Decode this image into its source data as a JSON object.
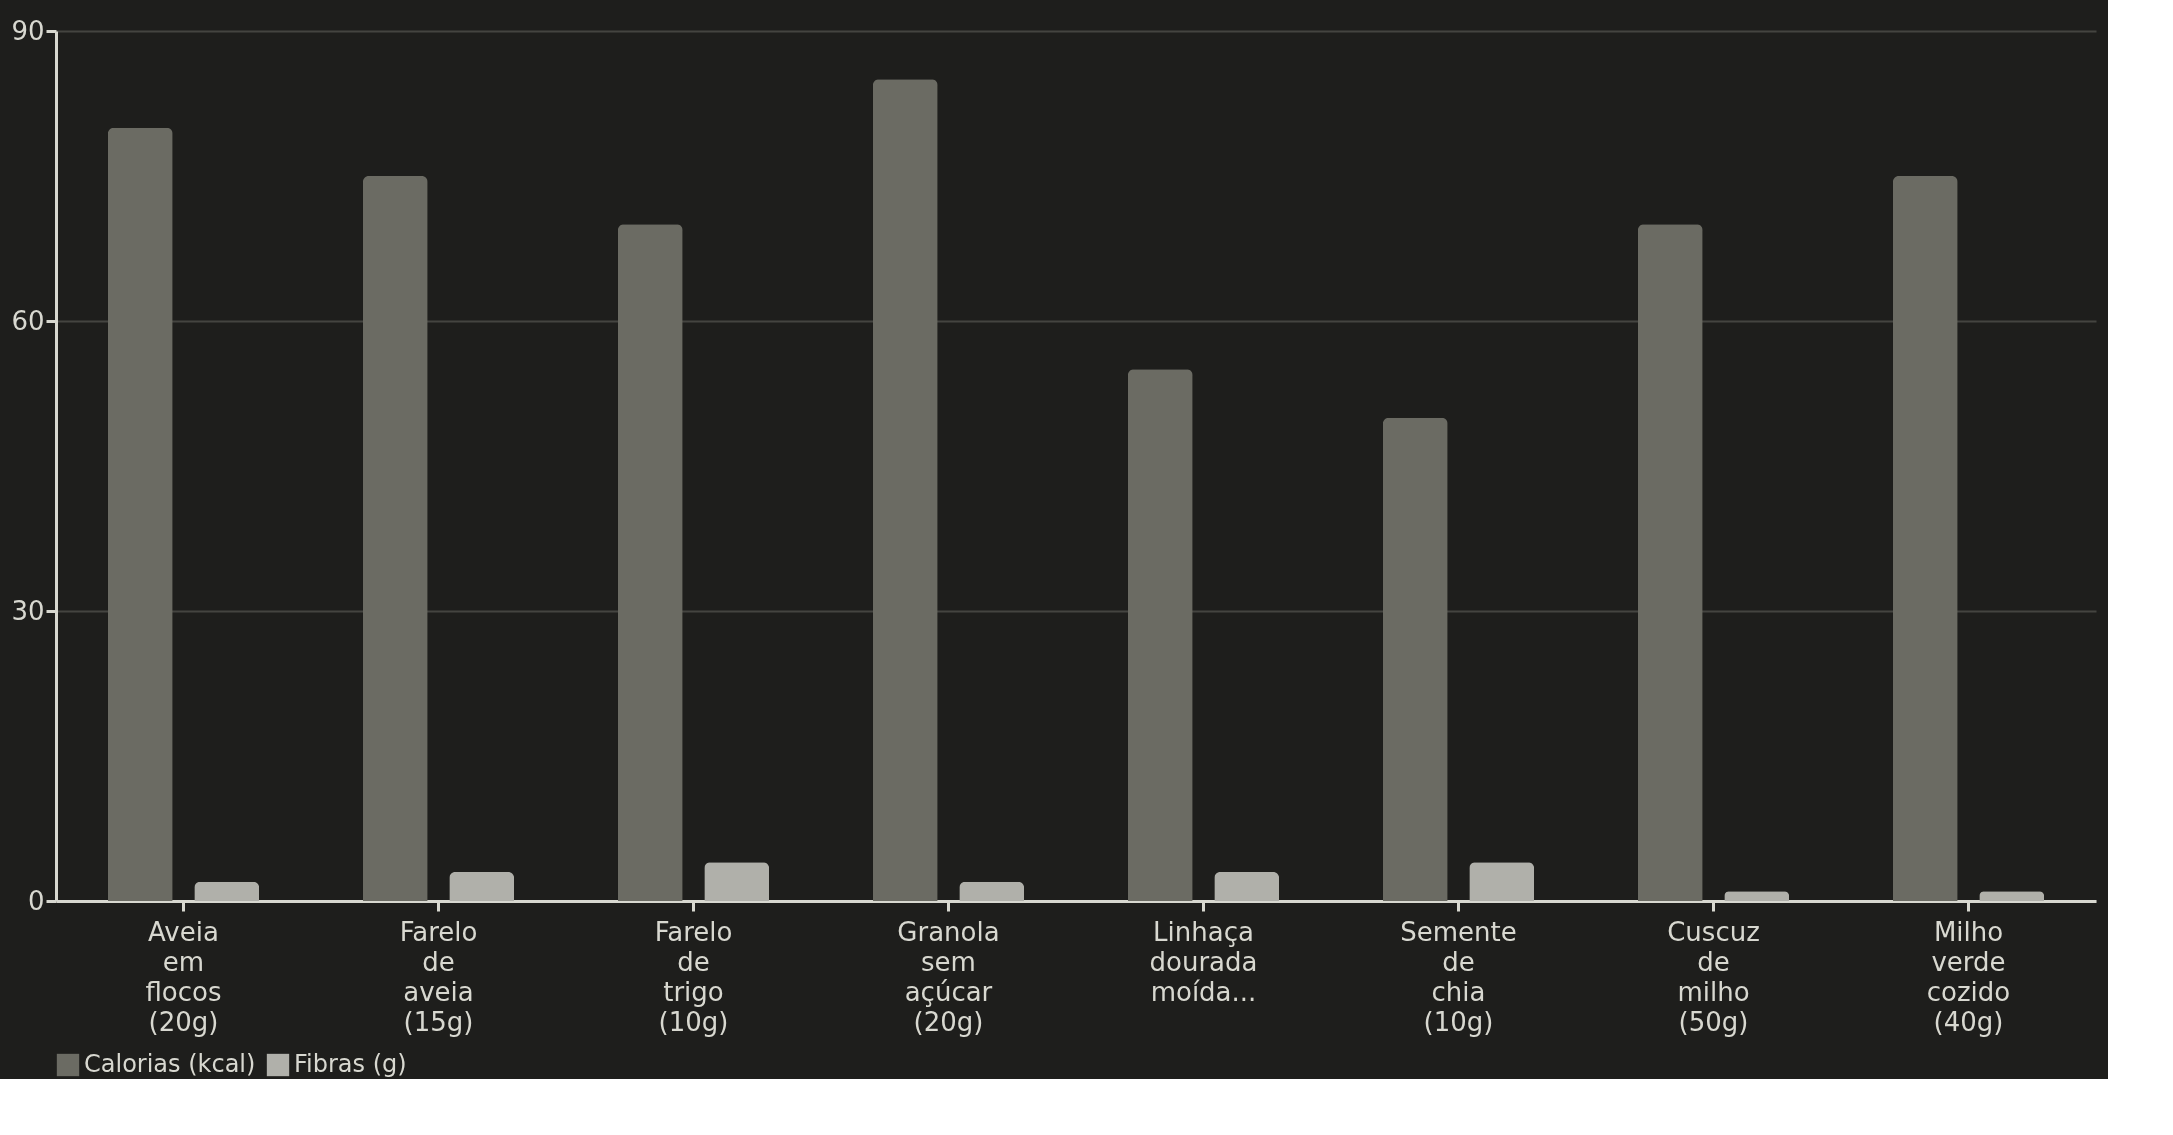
{
  "chart_data": {
    "type": "bar",
    "categories": [
      "Aveia em flocos (20g)",
      "Farelo de aveia (15g)",
      "Farelo de trigo (10g)",
      "Granola sem açúcar (20g)",
      "Linhaça dourada moída...",
      "Semente de chia (10g)",
      "Cuscuz de milho (50g)",
      "Milho verde cozido (40g)"
    ],
    "series": [
      {
        "name": "Calorias (kcal)",
        "color": "#6b6b63",
        "values": [
          80,
          75,
          70,
          85,
          55,
          50,
          70,
          75
        ]
      },
      {
        "name": "Fibras (g)",
        "color": "#b0b0aa",
        "values": [
          2,
          3,
          4,
          2,
          3,
          4,
          1,
          1
        ]
      }
    ],
    "ylim": [
      0,
      90
    ],
    "yticks": [
      0,
      30,
      60,
      90
    ],
    "grid": "y",
    "legend": "bottom"
  }
}
